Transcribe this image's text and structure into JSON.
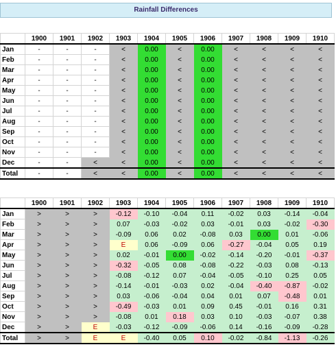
{
  "title": "Rainfall Differences",
  "years": [
    "1900",
    "1901",
    "1902",
    "1903",
    "1904",
    "1905",
    "1906",
    "1907",
    "1908",
    "1909",
    "1910"
  ],
  "months": [
    "Jan",
    "Feb",
    "Mar",
    "Apr",
    "May",
    "Jun",
    "Jul",
    "Aug",
    "Sep",
    "Oct",
    "Nov",
    "Dec"
  ],
  "total_label": "Total",
  "colors": {
    "grey": "#c0c0c0",
    "bright_green": "#33dd33",
    "light_green": "#c6efce",
    "light_red": "#ffc7ce",
    "yellow": "#ffffcc"
  },
  "table1": {
    "rows": [
      [
        "-",
        "-",
        "-",
        "<",
        "0.00",
        "<",
        "0.00",
        "<",
        "<",
        "<",
        "<"
      ],
      [
        "-",
        "-",
        "-",
        "<",
        "0.00",
        "<",
        "0.00",
        "<",
        "<",
        "<",
        "<"
      ],
      [
        "-",
        "-",
        "-",
        "<",
        "0.00",
        "<",
        "0.00",
        "<",
        "<",
        "<",
        "<"
      ],
      [
        "-",
        "-",
        "-",
        "<",
        "0.00",
        "<",
        "0.00",
        "<",
        "<",
        "<",
        "<"
      ],
      [
        "-",
        "-",
        "-",
        "<",
        "0.00",
        "<",
        "0.00",
        "<",
        "<",
        "<",
        "<"
      ],
      [
        "-",
        "-",
        "-",
        "<",
        "0.00",
        "<",
        "0.00",
        "<",
        "<",
        "<",
        "<"
      ],
      [
        "-",
        "-",
        "-",
        "<",
        "0.00",
        "<",
        "0.00",
        "<",
        "<",
        "<",
        "<"
      ],
      [
        "-",
        "-",
        "-",
        "<",
        "0.00",
        "<",
        "0.00",
        "<",
        "<",
        "<",
        "<"
      ],
      [
        "-",
        "-",
        "-",
        "<",
        "0.00",
        "<",
        "0.00",
        "<",
        "<",
        "<",
        "<"
      ],
      [
        "-",
        "-",
        "-",
        "<",
        "0.00",
        "<",
        "0.00",
        "<",
        "<",
        "<",
        "<"
      ],
      [
        "-",
        "-",
        "-",
        "<",
        "0.00",
        "<",
        "0.00",
        "<",
        "<",
        "<",
        "<"
      ],
      [
        "-",
        "-",
        "<",
        "<",
        "0.00",
        "<",
        "0.00",
        "<",
        "<",
        "<",
        "<"
      ]
    ],
    "total": [
      "-",
      "-",
      "<",
      "<",
      "0.00",
      "<",
      "0.00",
      "<",
      "<",
      "<",
      "<"
    ],
    "fills": [
      [
        "",
        "",
        "",
        "gr",
        "gn",
        "gr",
        "gn",
        "gr",
        "gr",
        "gr",
        "gr"
      ],
      [
        "",
        "",
        "",
        "gr",
        "gn",
        "gr",
        "gn",
        "gr",
        "gr",
        "gr",
        "gr"
      ],
      [
        "",
        "",
        "",
        "gr",
        "gn",
        "gr",
        "gn",
        "gr",
        "gr",
        "gr",
        "gr"
      ],
      [
        "",
        "",
        "",
        "gr",
        "gn",
        "gr",
        "gn",
        "gr",
        "gr",
        "gr",
        "gr"
      ],
      [
        "",
        "",
        "",
        "gr",
        "gn",
        "gr",
        "gn",
        "gr",
        "gr",
        "gr",
        "gr"
      ],
      [
        "",
        "",
        "",
        "gr",
        "gn",
        "gr",
        "gn",
        "gr",
        "gr",
        "gr",
        "gr"
      ],
      [
        "",
        "",
        "",
        "gr",
        "gn",
        "gr",
        "gn",
        "gr",
        "gr",
        "gr",
        "gr"
      ],
      [
        "",
        "",
        "",
        "gr",
        "gn",
        "gr",
        "gn",
        "gr",
        "gr",
        "gr",
        "gr"
      ],
      [
        "",
        "",
        "",
        "gr",
        "gn",
        "gr",
        "gn",
        "gr",
        "gr",
        "gr",
        "gr"
      ],
      [
        "",
        "",
        "",
        "gr",
        "gn",
        "gr",
        "gn",
        "gr",
        "gr",
        "gr",
        "gr"
      ],
      [
        "",
        "",
        "",
        "gr",
        "gn",
        "gr",
        "gn",
        "gr",
        "gr",
        "gr",
        "gr"
      ],
      [
        "",
        "",
        "gr",
        "gr",
        "gn",
        "gr",
        "gn",
        "gr",
        "gr",
        "gr",
        "gr"
      ]
    ],
    "total_fills": [
      "",
      "",
      "gr",
      "gr",
      "gn",
      "gr",
      "gn",
      "gr",
      "gr",
      "gr",
      "gr"
    ]
  },
  "table2": {
    "rows": [
      [
        ">",
        ">",
        ">",
        "-0.12",
        "-0.10",
        "-0.04",
        "0.11",
        "-0.02",
        "0.03",
        "-0.14",
        "-0.04"
      ],
      [
        ">",
        ">",
        ">",
        "0.07",
        "-0.03",
        "-0.02",
        "0.03",
        "-0.01",
        "0.03",
        "-0.02",
        "-0.30"
      ],
      [
        ">",
        ">",
        ">",
        "-0.09",
        "0.06",
        "0.02",
        "-0.08",
        "0.03",
        "0.00",
        "0.01",
        "-0.06"
      ],
      [
        ">",
        ">",
        ">",
        "E",
        "0.06",
        "-0.09",
        "0.06",
        "-0.27",
        "-0.04",
        "0.05",
        "0.19"
      ],
      [
        ">",
        ">",
        ">",
        "0.02",
        "-0.01",
        "0.00",
        "-0.02",
        "-0.14",
        "-0.20",
        "-0.01",
        "-0.37"
      ],
      [
        ">",
        ">",
        ">",
        "-0.32",
        "-0.05",
        "0.08",
        "-0.08",
        "-0.22",
        "-0.03",
        "0.08",
        "-0.13"
      ],
      [
        ">",
        ">",
        ">",
        "-0.08",
        "-0.12",
        "0.07",
        "-0.04",
        "-0.05",
        "-0.10",
        "0.25",
        "0.05"
      ],
      [
        ">",
        ">",
        ">",
        "-0.14",
        "-0.01",
        "-0.03",
        "0.02",
        "-0.04",
        "-0.40",
        "-0.87",
        "-0.02"
      ],
      [
        ">",
        ">",
        ">",
        "0.03",
        "-0.06",
        "-0.04",
        "0.04",
        "0.01",
        "0.07",
        "-0.48",
        "0.01"
      ],
      [
        ">",
        ">",
        ">",
        "-0.49",
        "-0.03",
        "0.01",
        "0.09",
        "0.45",
        "-0.01",
        "0.16",
        "0.31"
      ],
      [
        ">",
        ">",
        ">",
        "-0.08",
        "0.01",
        "0.18",
        "0.03",
        "0.10",
        "-0.03",
        "-0.07",
        "0.38"
      ],
      [
        ">",
        ">",
        "E",
        "-0.03",
        "-0.12",
        "-0.09",
        "-0.06",
        "0.14",
        "-0.16",
        "-0.09",
        "-0.28"
      ]
    ],
    "total": [
      ">",
      ">",
      "E",
      "E",
      "-0.40",
      "0.05",
      "0.10",
      "-0.02",
      "-0.84",
      "-1.13",
      "-0.26"
    ],
    "fills": [
      [
        "gr",
        "gr",
        "gr",
        "pk",
        "lg",
        "lg",
        "lg",
        "lg",
        "lg",
        "lg",
        "lg"
      ],
      [
        "gr",
        "gr",
        "gr",
        "lg",
        "lg",
        "lg",
        "lg",
        "lg",
        "lg",
        "lg",
        "pk"
      ],
      [
        "gr",
        "gr",
        "gr",
        "lg",
        "lg",
        "lg",
        "lg",
        "lg",
        "gn",
        "lg",
        "lg"
      ],
      [
        "gr",
        "gr",
        "gr",
        "yl",
        "lg",
        "lg",
        "lg",
        "pk",
        "lg",
        "lg",
        "lg"
      ],
      [
        "gr",
        "gr",
        "gr",
        "lg",
        "lg",
        "gn",
        "lg",
        "lg",
        "lg",
        "lg",
        "pk"
      ],
      [
        "gr",
        "gr",
        "gr",
        "pk",
        "lg",
        "lg",
        "lg",
        "lg",
        "lg",
        "lg",
        "lg"
      ],
      [
        "gr",
        "gr",
        "gr",
        "lg",
        "lg",
        "lg",
        "lg",
        "lg",
        "lg",
        "lg",
        "lg"
      ],
      [
        "gr",
        "gr",
        "gr",
        "lg",
        "lg",
        "lg",
        "lg",
        "lg",
        "pk",
        "pk",
        "lg"
      ],
      [
        "gr",
        "gr",
        "gr",
        "lg",
        "lg",
        "lg",
        "lg",
        "lg",
        "lg",
        "pk",
        "lg"
      ],
      [
        "gr",
        "gr",
        "gr",
        "pk",
        "lg",
        "lg",
        "lg",
        "lg",
        "lg",
        "lg",
        "lg"
      ],
      [
        "gr",
        "gr",
        "gr",
        "lg",
        "lg",
        "pk",
        "lg",
        "lg",
        "lg",
        "lg",
        "lg"
      ],
      [
        "gr",
        "gr",
        "yl",
        "lg",
        "lg",
        "lg",
        "lg",
        "lg",
        "lg",
        "lg",
        "lg"
      ]
    ],
    "total_fills": [
      "gr",
      "gr",
      "yl",
      "yl",
      "lg",
      "lg",
      "pk",
      "lg",
      "lg",
      "pk",
      "lg"
    ]
  }
}
